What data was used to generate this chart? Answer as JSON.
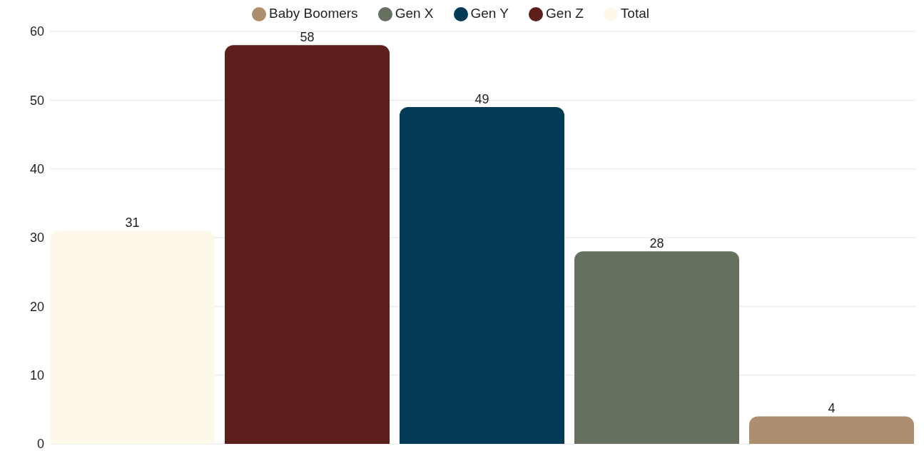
{
  "chart_data": {
    "type": "bar",
    "categories": [
      null
    ],
    "series": [
      {
        "name": "Total",
        "color": "#fdf8ea",
        "values": [
          31
        ]
      },
      {
        "name": "Gen Z",
        "color": "#5c1f1c",
        "values": [
          58
        ]
      },
      {
        "name": "Gen Y",
        "color": "#033a55",
        "values": [
          49
        ]
      },
      {
        "name": "Gen X",
        "color": "#65705f",
        "values": [
          28
        ]
      },
      {
        "name": "Baby Boomers",
        "color": "#ae8e70",
        "values": [
          4
        ]
      }
    ],
    "ylim": [
      0,
      60
    ],
    "yticks": [
      0,
      10,
      20,
      30,
      40,
      50,
      60
    ],
    "grid": "y",
    "legend": "top",
    "data_labels": true
  }
}
